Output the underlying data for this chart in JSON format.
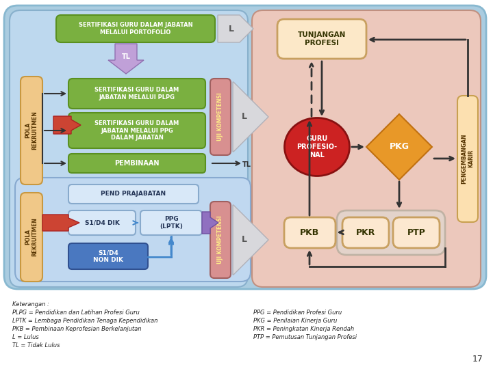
{
  "bg_color": "#ffffff",
  "main_bg": "#aacce0",
  "left_bg": "#bdd8ee",
  "right_bg": "#ecc8bc",
  "green_box": "#7ab040",
  "green_edge": "#5a9020",
  "peach_rekr": "#f0c888",
  "peach_rekr_edge": "#c89840",
  "purple_uji": "#c080c8",
  "purple_uji_edge": "#905898",
  "pink_uji": "#d89090",
  "pink_uji_edge": "#a06060",
  "gray_arrow": "#d0d0d8",
  "purple_arrow": "#9868b8",
  "red_arrow": "#cc4433",
  "tunjangan_fill": "#fce8c8",
  "tunjangan_edge": "#c8a060",
  "pengembangan_fill": "#fce0b0",
  "pengembangan_edge": "#c8a050",
  "guru_fill": "#cc2222",
  "pkg_fill": "#e89828",
  "pkg_edge": "#c07010",
  "pkb_fill": "#fce8d0",
  "pkb_edge": "#c8a060",
  "pkr_ptp_fill": "#fce8d0",
  "pkr_ptp_edge": "#c8a060",
  "pkr_ptp_outer": "#c0b0a0",
  "pend_fill": "#d8e8f8",
  "pend_edge": "#88aacc",
  "s1d4_fill": "#d8e8f8",
  "s1d4_edge": "#88aacc",
  "s1d4_nondik_fill": "#4a78c0",
  "s1d4_nondik_edge": "#305090",
  "note_left": [
    "Keterangan :",
    "PLPG = Pendidikan dan Latihan Profesi Guru",
    "LPTK = Lembaga Pendidikan Tenaga Kependidikan",
    "PKB = Pembinaan Keprofesian Berkelanjutan",
    "L = Lulus",
    "TL = Tidak Lulus"
  ],
  "note_right": [
    "PPG = Pendidikan Profesi Guru",
    "PKG = Penilaian Kinerja Guru",
    "PKR = Peningkatan Kinerja Rendah",
    "PTP = Pemutusan Tunjangan Profesi"
  ],
  "page_num": "17"
}
